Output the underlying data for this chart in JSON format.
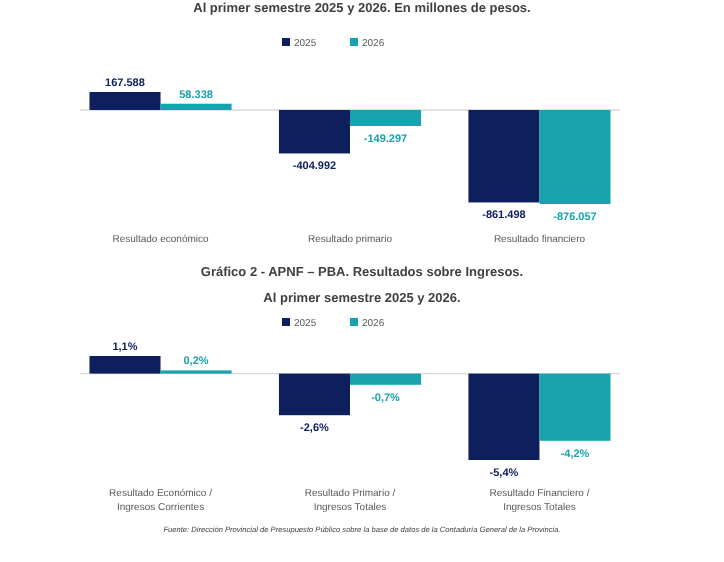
{
  "chart_data": [
    {
      "type": "bar",
      "title": "Al primer semestre 2025 y 2026. En millones de pesos.",
      "categories": [
        "Resultado económico",
        "Resultado primario",
        "Resultado financiero"
      ],
      "legend": "top",
      "series": [
        {
          "name": "2025",
          "color": "#0d1f5c",
          "values": [
            167588,
            -404992,
            -861498
          ],
          "value_labels": [
            "167.588",
            "-404.992",
            "-861.498"
          ]
        },
        {
          "name": "2026",
          "color": "#17a2ae",
          "values": [
            58338,
            -149297,
            -876057
          ],
          "value_labels": [
            "58.338",
            "-149.297",
            "-876.057"
          ]
        }
      ]
    },
    {
      "type": "bar",
      "title": "Gráfico 2 - APNF – PBA. Resultados sobre Ingresos.",
      "subtitle": "Al primer semestre 2025 y 2026.",
      "categories": [
        "Resultado Económico / Ingresos Corrientes",
        "Resultado Primario / Ingresos Totales",
        "Resultado Financiero / Ingresos Totales"
      ],
      "legend": "top",
      "series": [
        {
          "name": "2025",
          "color": "#0d1f5c",
          "values": [
            1.1,
            -2.6,
            -5.4
          ],
          "value_labels": [
            "1,1%",
            "-2,6%",
            "-5,4%"
          ]
        },
        {
          "name": "2026",
          "color": "#17a2ae",
          "values": [
            0.2,
            -0.7,
            -4.2
          ],
          "value_labels": [
            "0,2%",
            "-0,7%",
            "-4,2%"
          ]
        }
      ],
      "annotations": [
        "Fuente: Dirección Provincial de Presupuesto Público sobre la base de datos de la Contaduría General de la Provincia."
      ]
    }
  ]
}
